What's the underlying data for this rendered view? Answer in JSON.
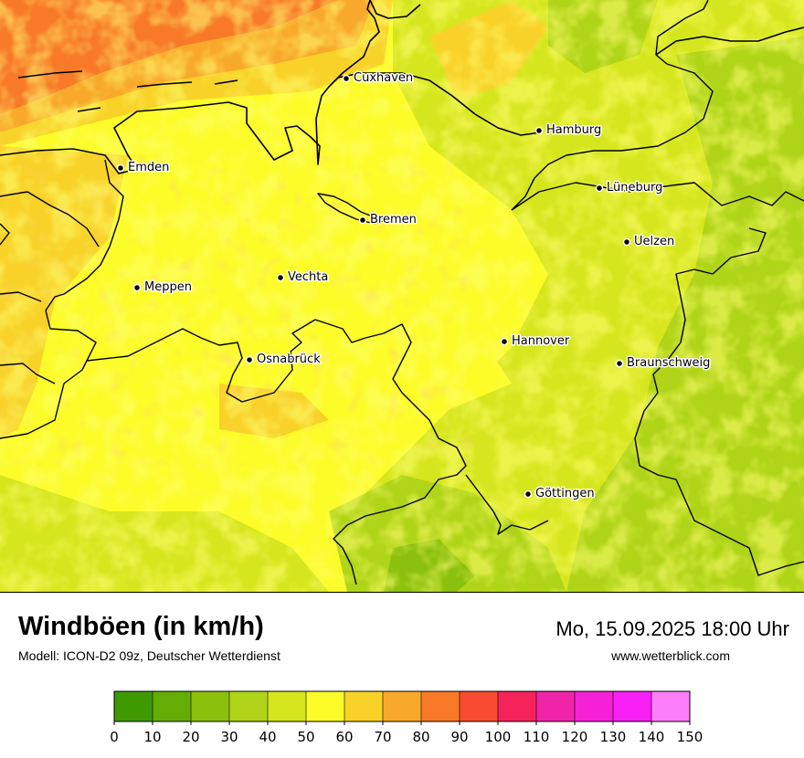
{
  "title": "Windböen (in km/h)",
  "subtitle": "Modell: ICON-D2 09z, Deutscher Wetterdienst",
  "datetime": "Mo, 15.09.2025 18:00 Uhr",
  "website": "www.wetterblick.com",
  "cities": [
    {
      "name": "Cuxhaven"
    },
    {
      "name": "Hamburg"
    },
    {
      "name": "Emden"
    },
    {
      "name": "Lüneburg"
    },
    {
      "name": "Bremen"
    },
    {
      "name": "Uelzen"
    },
    {
      "name": "Vechta"
    },
    {
      "name": "Meppen"
    },
    {
      "name": "Hannover"
    },
    {
      "name": "Osnabrück"
    },
    {
      "name": "Braunschweig"
    },
    {
      "name": "Göttingen"
    }
  ],
  "legend": {
    "ticks": [
      "0",
      "10",
      "20",
      "30",
      "40",
      "50",
      "60",
      "70",
      "80",
      "90",
      "100",
      "110",
      "120",
      "130",
      "140",
      "150"
    ],
    "colors": [
      "#3f9900",
      "#64ad04",
      "#8bc00c",
      "#b0d418",
      "#d6e61e",
      "#fcfc28",
      "#f8d228",
      "#f8a82a",
      "#f87a28",
      "#f84b30",
      "#f6225a",
      "#f024a8",
      "#f620d6",
      "#f820f6",
      "#fc7ef8"
    ]
  },
  "palette": {
    "sea_orange": "#f87a28",
    "strong_orange": "#f8a82a",
    "yellow": "#fcfc28",
    "lime": "#d6e61e",
    "green": "#b0d418",
    "deep_green": "#8bc00c"
  }
}
